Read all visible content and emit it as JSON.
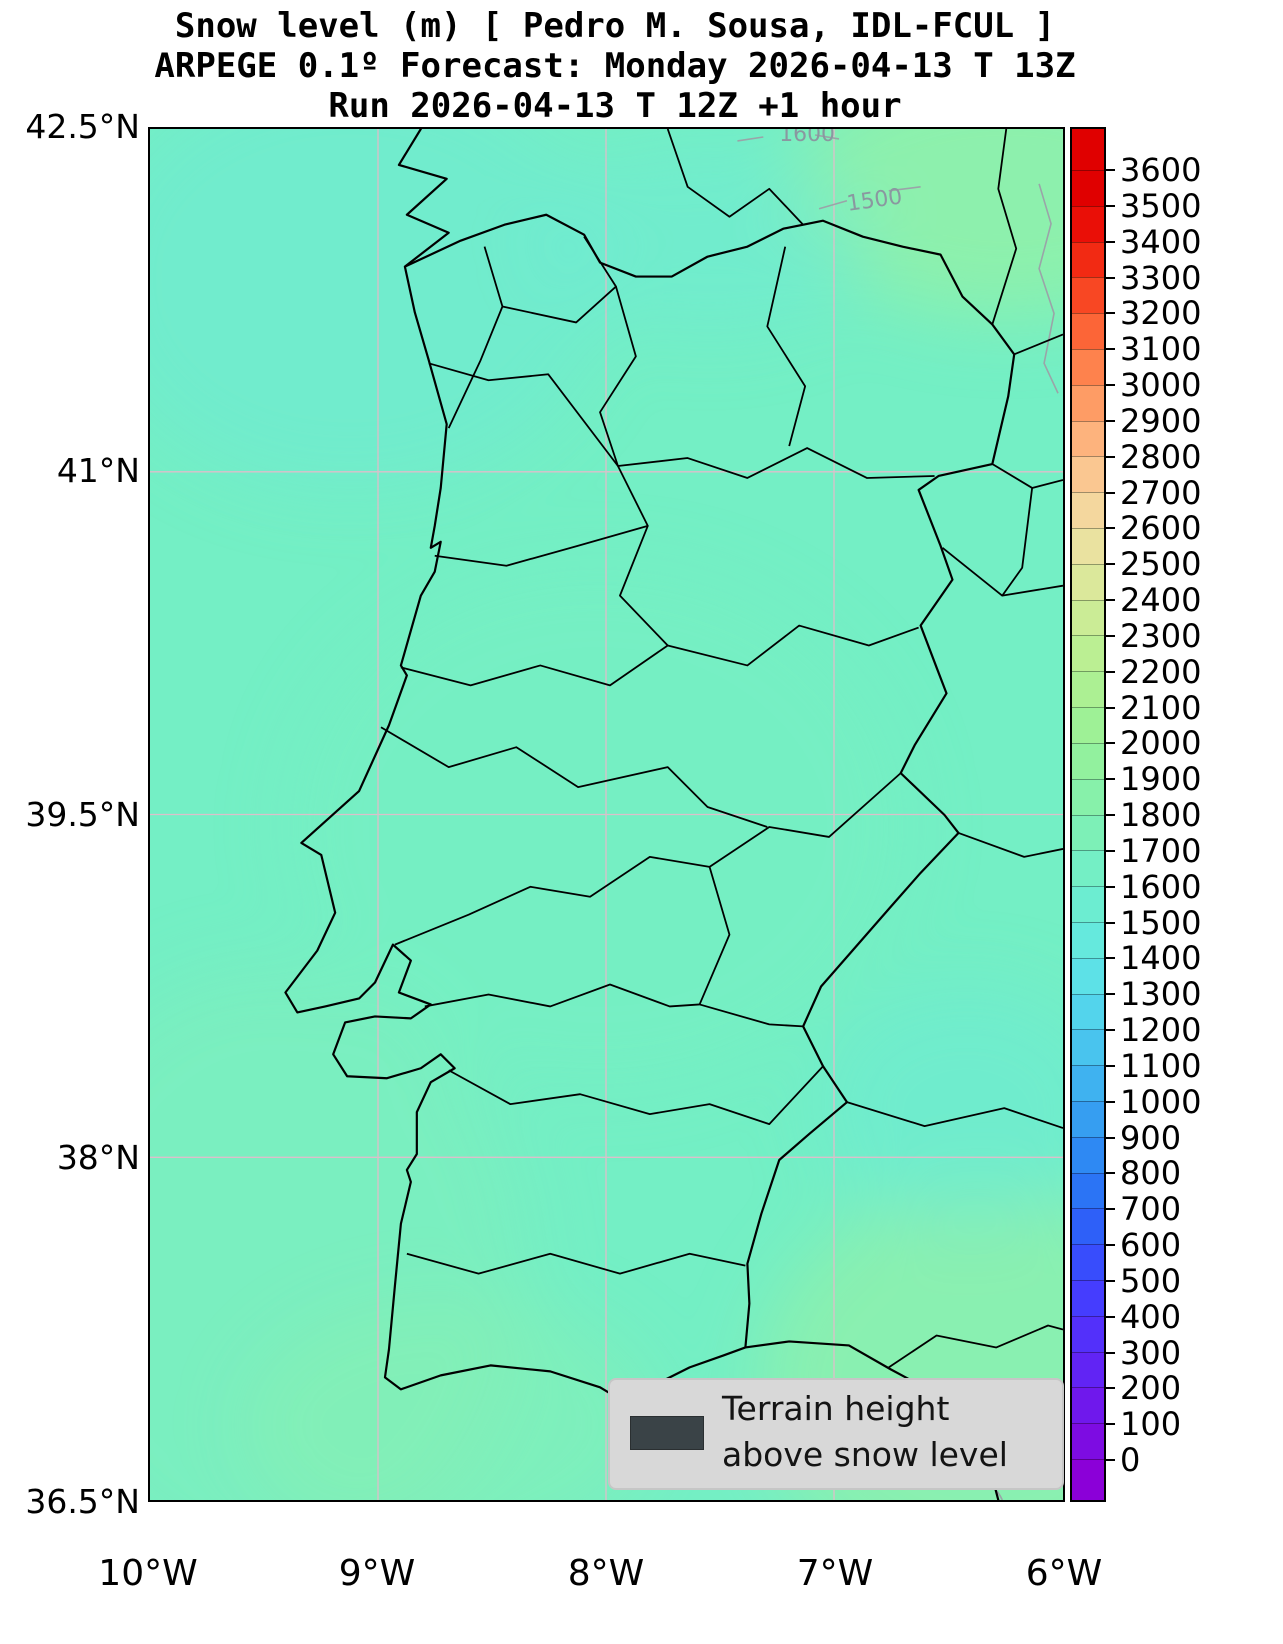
{
  "title": {
    "line1": "Snow level (m) [ Pedro M. Sousa, IDL-FCUL ]",
    "line2": "ARPEGE 0.1º Forecast: Monday 2026-04-13 T 13Z",
    "line3": "Run 2026-04-13 T 12Z +1 hour"
  },
  "axes": {
    "y_ticks": [
      "42.5°N",
      "41°N",
      "39.5°N",
      "38°N",
      "36.5°N"
    ],
    "x_ticks": [
      "10°W",
      "9°W",
      "8°W",
      "7°W",
      "6°W"
    ]
  },
  "colorbar": {
    "unit": "m",
    "tick_values": [
      3600,
      3500,
      3400,
      3300,
      3200,
      3100,
      3000,
      2900,
      2800,
      2700,
      2600,
      2500,
      2400,
      2300,
      2200,
      2100,
      2000,
      1900,
      1800,
      1700,
      1600,
      1500,
      1400,
      1300,
      1200,
      1100,
      1000,
      900,
      800,
      700,
      600,
      500,
      400,
      300,
      200,
      100,
      0
    ],
    "colors_low_to_high": [
      "#8b00d8",
      "#7d0ce2",
      "#6f18ec",
      "#6124f4",
      "#5330fa",
      "#453dfe",
      "#384dfc",
      "#2e60f8",
      "#2b74f5",
      "#2e89f3",
      "#369ef1",
      "#3fb2f0",
      "#49c4ee",
      "#53d4ec",
      "#5de1e7",
      "#65e9dd",
      "#6cedd1",
      "#74efc5",
      "#7df0b7",
      "#87f1aa",
      "#92f19e",
      "#9ef196",
      "#acf093",
      "#bbef93",
      "#cbec96",
      "#dbe89b",
      "#eae2a0",
      "#f4d79e",
      "#fac791",
      "#fdb37d",
      "#fe9c65",
      "#fe824d",
      "#fc6537",
      "#f84723",
      "#f22a13",
      "#ea0f07",
      "#e00000"
    ]
  },
  "map": {
    "base_color": "#74efc5",
    "grid_color": "#dcbfca",
    "coast_color": "#000000",
    "secondary_boundary_color": "#9aa4a8",
    "contour_color": "#8a98a0",
    "contour_labels": [
      "1600",
      "1500"
    ]
  },
  "legend": {
    "line1": "Terrain height",
    "line2": "above snow level",
    "swatch_color": "#3a4347"
  }
}
